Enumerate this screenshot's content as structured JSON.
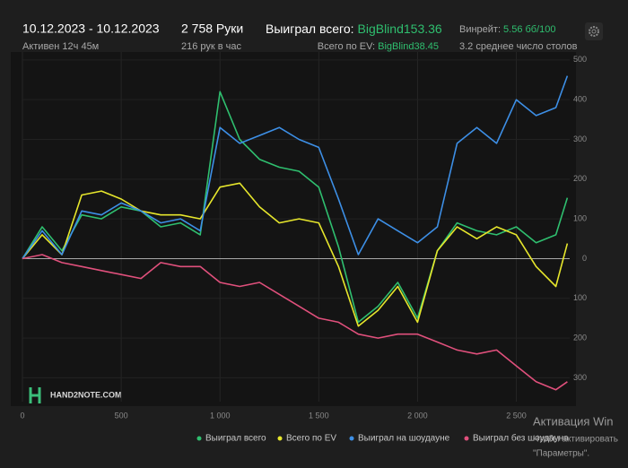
{
  "header": {
    "date_range": "10.12.2023 - 10.12.2023",
    "active": "Активен 12ч 45м",
    "hands": "2 758 Руки",
    "hands_per_hour": "216 рук в час",
    "won_total_label": "Выиграл всего:",
    "won_total_value": "BigBlind153.36",
    "ev_label": "Всего по EV:",
    "ev_value": "BigBlind38.45",
    "winrate_label": "Винрейт:",
    "winrate_value": "5.56 бб/100",
    "tables": "3.2 среднее число столов"
  },
  "logo": "HAND2NOTE.COM",
  "watermark": {
    "title": "Активация Win",
    "line1": "Чтобы активировать",
    "line2": "\"Параметры\"."
  },
  "chart_data": {
    "type": "line",
    "x": [
      0,
      100,
      200,
      300,
      400,
      500,
      600,
      700,
      800,
      900,
      1000,
      1100,
      1200,
      1300,
      1400,
      1500,
      1600,
      1700,
      1800,
      1900,
      2000,
      2100,
      2200,
      2300,
      2400,
      2500,
      2600,
      2700,
      2758
    ],
    "series": [
      {
        "name": "Выиграл всего",
        "color": "#2fbf6f",
        "values": [
          0,
          80,
          20,
          110,
          100,
          130,
          120,
          80,
          90,
          60,
          420,
          300,
          250,
          230,
          220,
          180,
          30,
          -160,
          -120,
          -60,
          -150,
          20,
          90,
          70,
          60,
          80,
          40,
          60,
          153
        ]
      },
      {
        "name": "Всего по EV",
        "color": "#e6e62c",
        "values": [
          0,
          60,
          10,
          160,
          170,
          150,
          120,
          110,
          110,
          100,
          180,
          190,
          130,
          90,
          100,
          90,
          -20,
          -170,
          -130,
          -70,
          -160,
          20,
          80,
          50,
          80,
          60,
          -20,
          -70,
          38
        ]
      },
      {
        "name": "Выиграл на шоудауне",
        "color": "#3d8fe6",
        "values": [
          0,
          70,
          10,
          120,
          110,
          140,
          120,
          90,
          100,
          70,
          330,
          290,
          310,
          330,
          300,
          280,
          150,
          10,
          100,
          70,
          40,
          80,
          290,
          330,
          290,
          400,
          360,
          380,
          460
        ]
      },
      {
        "name": "Выиграл без шоудауна",
        "color": "#e0507c",
        "values": [
          0,
          10,
          -10,
          -20,
          -30,
          -40,
          -50,
          -10,
          -20,
          -20,
          -60,
          -70,
          -60,
          -90,
          -120,
          -150,
          -160,
          -190,
          -200,
          -190,
          -190,
          -210,
          -230,
          -240,
          -230,
          -270,
          -310,
          -330,
          -310
        ]
      }
    ],
    "xlim": [
      0,
      2770
    ],
    "xticks": [
      0,
      500,
      {
        "value": 1000,
        "label": "1 000"
      },
      {
        "value": 1500,
        "label": "1 500"
      },
      {
        "value": 2000,
        "label": "2 000"
      },
      {
        "value": 2500,
        "label": "2 500"
      }
    ],
    "ylim": [
      -360,
      520
    ],
    "yticks": [
      {
        "value": -300,
        "label": "300"
      },
      {
        "value": -200,
        "label": "200"
      },
      {
        "value": -100,
        "label": "100"
      },
      0,
      100,
      200,
      300,
      400,
      500
    ],
    "grid": true
  }
}
